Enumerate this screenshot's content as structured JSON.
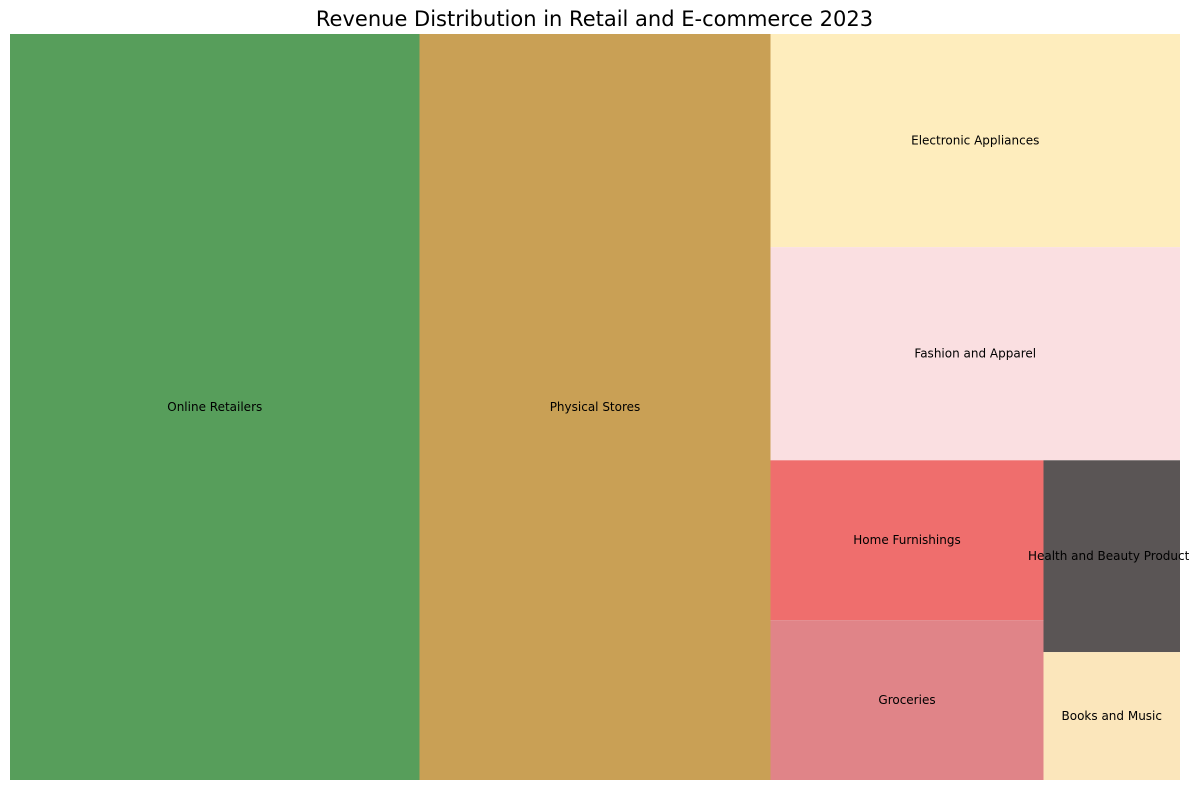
{
  "chart_data": {
    "type": "treemap",
    "title": "Revenue Distribution in Retail and E-commerce 2023",
    "items": [
      {
        "label": "Online Retailers",
        "value": 35,
        "color": "#579e5b"
      },
      {
        "label": "Physical Stores",
        "value": 30,
        "color": "#c9a055"
      },
      {
        "label": "Electronic Appliances",
        "value": 10,
        "color": "#feedbd"
      },
      {
        "label": "Fashion and Apparel",
        "value": 10,
        "color": "#fadfe1"
      },
      {
        "label": "Home Furnishings",
        "value": 5,
        "color": "#ef6e6d"
      },
      {
        "label": "Groceries",
        "value": 5,
        "color": "#e08488"
      },
      {
        "label": "Health and Beauty Products",
        "value": 3,
        "color": "#5a5555"
      },
      {
        "label": "Books and Music",
        "value": 2,
        "color": "#fbe6bb"
      }
    ]
  }
}
